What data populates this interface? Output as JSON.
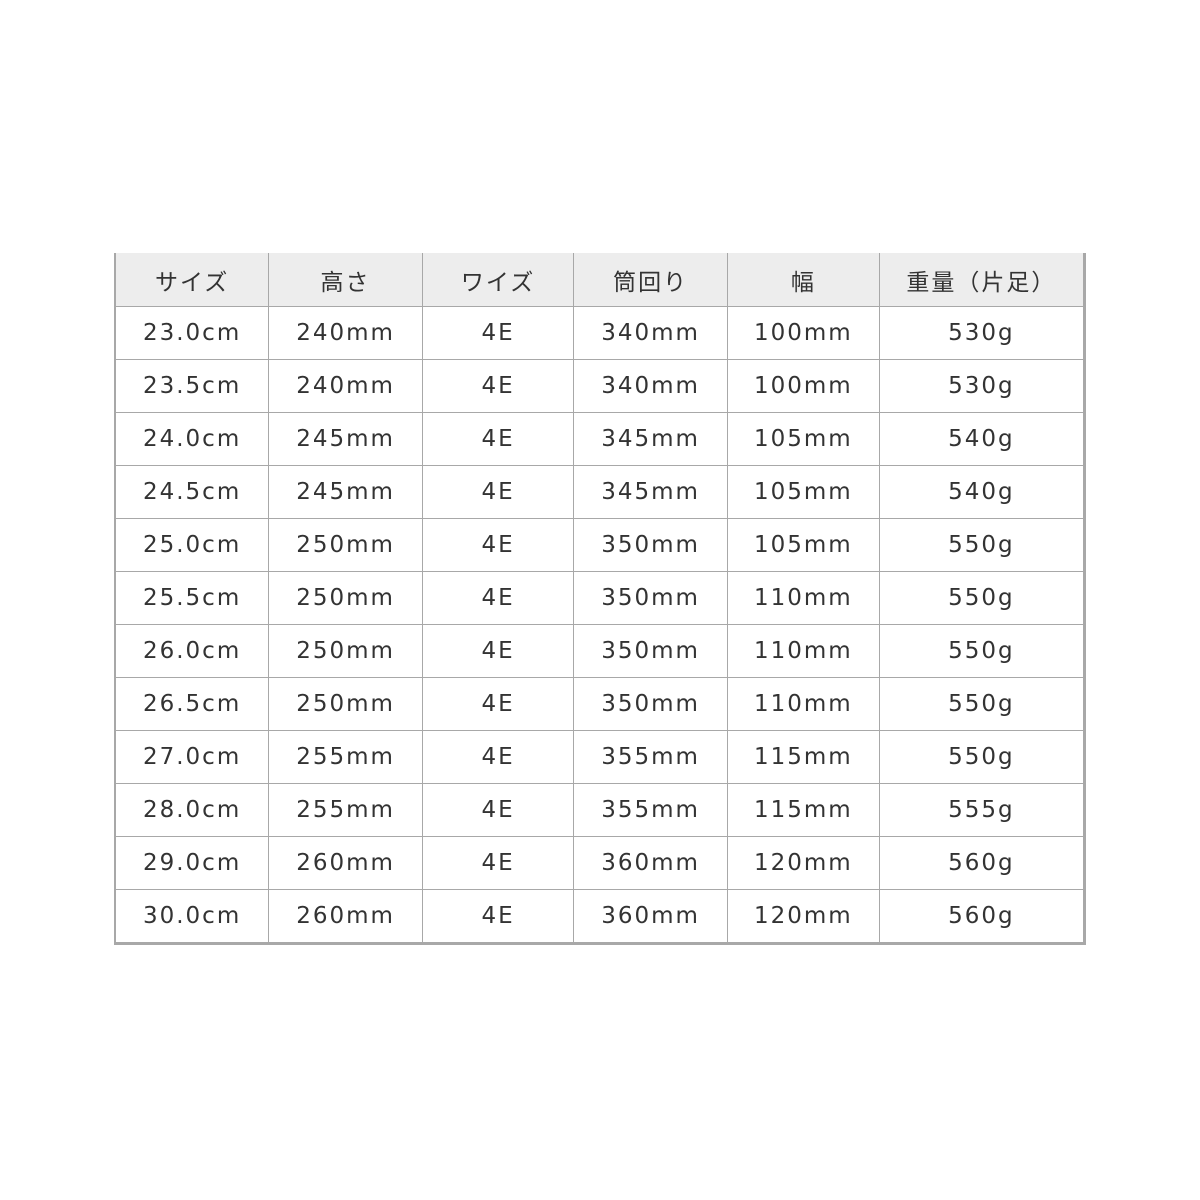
{
  "table": {
    "headers": [
      "サイズ",
      "高さ",
      "ワイズ",
      "筒回り",
      "幅",
      "重量（片足）"
    ],
    "rows": [
      [
        "23.0cm",
        "240mm",
        "4E",
        "340mm",
        "100mm",
        "530g"
      ],
      [
        "23.5cm",
        "240mm",
        "4E",
        "340mm",
        "100mm",
        "530g"
      ],
      [
        "24.0cm",
        "245mm",
        "4E",
        "345mm",
        "105mm",
        "540g"
      ],
      [
        "24.5cm",
        "245mm",
        "4E",
        "345mm",
        "105mm",
        "540g"
      ],
      [
        "25.0cm",
        "250mm",
        "4E",
        "350mm",
        "105mm",
        "550g"
      ],
      [
        "25.5cm",
        "250mm",
        "4E",
        "350mm",
        "110mm",
        "550g"
      ],
      [
        "26.0cm",
        "250mm",
        "4E",
        "350mm",
        "110mm",
        "550g"
      ],
      [
        "26.5cm",
        "250mm",
        "4E",
        "350mm",
        "110mm",
        "550g"
      ],
      [
        "27.0cm",
        "255mm",
        "4E",
        "355mm",
        "115mm",
        "550g"
      ],
      [
        "28.0cm",
        "255mm",
        "4E",
        "355mm",
        "115mm",
        "555g"
      ],
      [
        "29.0cm",
        "260mm",
        "4E",
        "360mm",
        "120mm",
        "560g"
      ],
      [
        "30.0cm",
        "260mm",
        "4E",
        "360mm",
        "120mm",
        "560g"
      ]
    ]
  }
}
